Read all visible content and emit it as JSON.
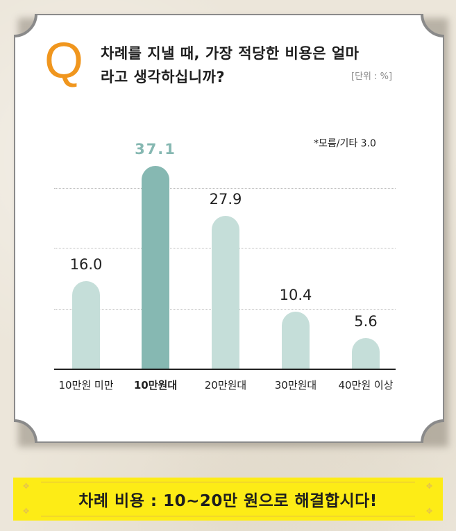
{
  "question": {
    "marker": "Q",
    "line1": "차례를 지낼 때, 가장 적당한 비용은 얼마",
    "line2": "라고 생각하십니까?",
    "unit": "[단위 : %]"
  },
  "note": "*모름/기타 3.0",
  "banner": {
    "text": "차례 비용 : 10~20만 원으로 해결합시다!"
  },
  "colors": {
    "accent_q": "#f0961e",
    "bar_highlight": "#86b8b2",
    "bar_normal": "#c5ded9",
    "banner_bg": "#fdec16",
    "card_border": "#8a8a8a"
  },
  "chart_data": {
    "type": "bar",
    "title": "차례를 지낼 때, 가장 적당한 비용은 얼마라고 생각하십니까?",
    "unit": "%",
    "categories": [
      "10만원 미만",
      "10만원대",
      "20만원대",
      "30만원대",
      "40만원 이상"
    ],
    "values": [
      16.0,
      37.1,
      27.9,
      10.4,
      5.6
    ],
    "value_labels": [
      "16.0",
      "37.1",
      "27.9",
      "10.4",
      "5.6"
    ],
    "highlight_index": 1,
    "annotation": "*모름/기타 3.0",
    "xlabel": "",
    "ylabel": "",
    "ylim": [
      0,
      40
    ],
    "grid": true,
    "legend": null
  }
}
